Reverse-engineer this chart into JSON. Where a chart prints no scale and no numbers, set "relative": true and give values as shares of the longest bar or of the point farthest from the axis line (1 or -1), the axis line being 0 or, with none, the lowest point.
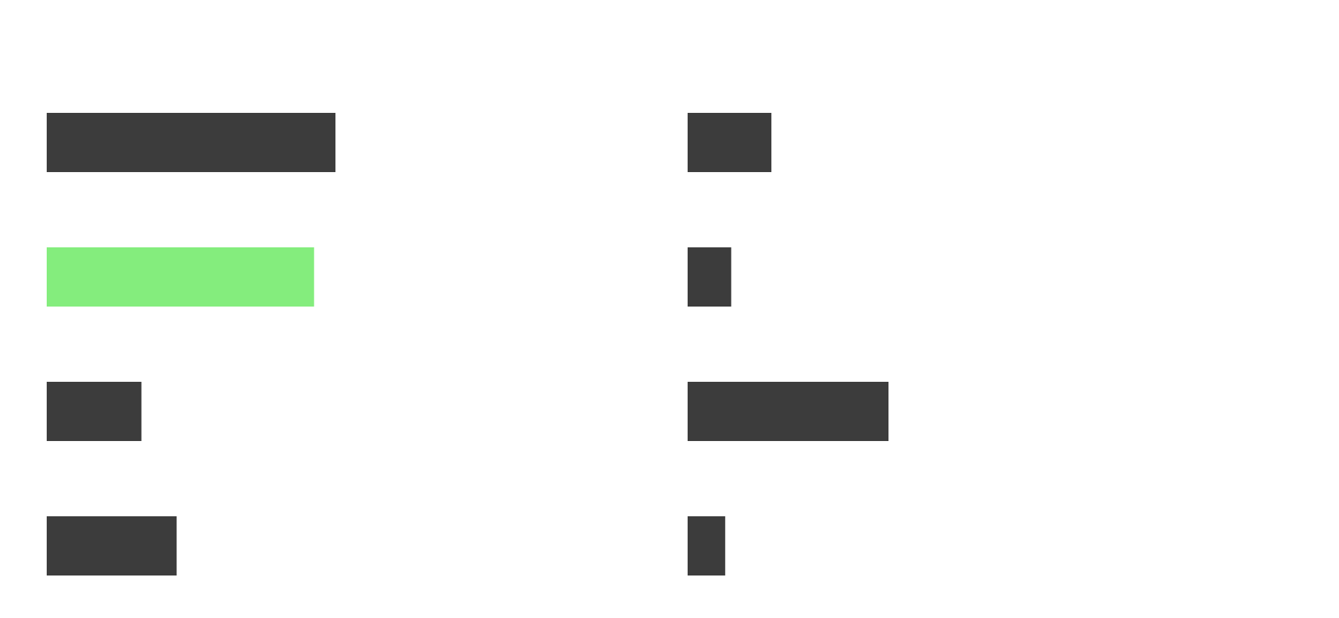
{
  "chart_data": [
    {
      "type": "bar",
      "orientation": "horizontal",
      "relative": true,
      "categories": [
        null,
        null,
        null,
        null
      ],
      "values": [
        1,
        0.926,
        0.328,
        0.45
      ],
      "colors": [
        "#3c3c3c",
        "#84ed7d",
        "#3c3c3c",
        "#3c3c3c"
      ]
    },
    {
      "type": "bar",
      "orientation": "horizontal",
      "relative": true,
      "categories": [
        null,
        null,
        null,
        null
      ],
      "values": [
        0.417,
        0.217,
        1,
        0.187
      ],
      "colors": [
        "#3c3c3c",
        "#3c3c3c",
        "#3c3c3c",
        "#3c3c3c"
      ]
    }
  ]
}
